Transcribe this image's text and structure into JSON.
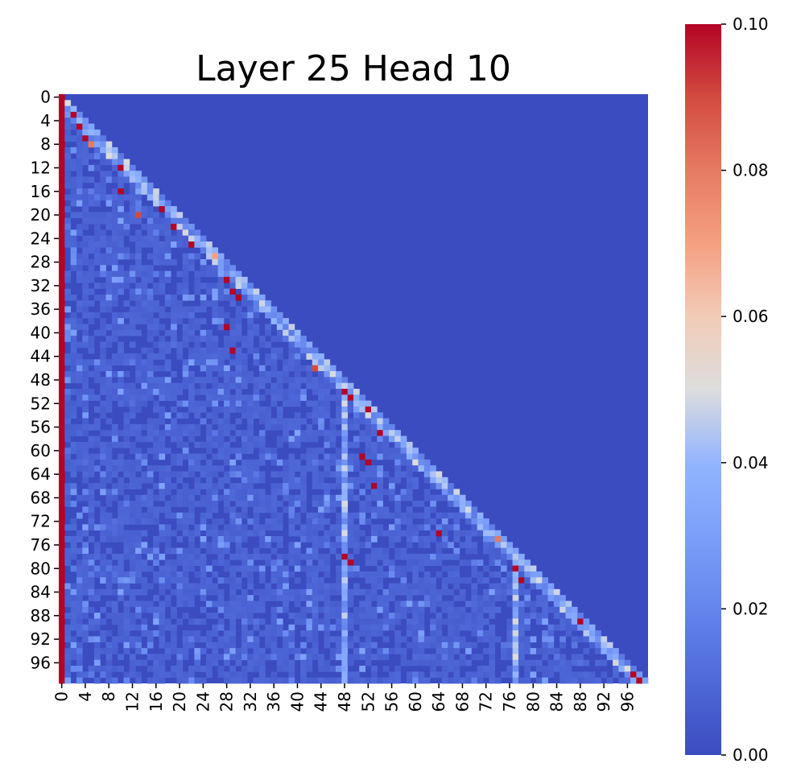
{
  "chart_data": {
    "type": "heatmap",
    "title": "Layer 25 Head 10",
    "xlabel": "",
    "ylabel": "",
    "n": 100,
    "x_tick_labels": [
      "0",
      "4",
      "8",
      "12",
      "16",
      "20",
      "24",
      "28",
      "32",
      "36",
      "40",
      "44",
      "48",
      "52",
      "56",
      "60",
      "64",
      "68",
      "72",
      "76",
      "80",
      "84",
      "88",
      "92",
      "96"
    ],
    "y_tick_labels": [
      "0",
      "4",
      "8",
      "12",
      "16",
      "20",
      "24",
      "28",
      "32",
      "36",
      "40",
      "44",
      "48",
      "52",
      "56",
      "60",
      "64",
      "68",
      "72",
      "76",
      "80",
      "84",
      "88",
      "92",
      "96"
    ],
    "mask": "upper triangle (j > i) is ~0",
    "colormap": "coolwarm",
    "vmin": 0.0,
    "vmax": 0.1,
    "colorbar_ticks": [
      "0.00",
      "0.02",
      "0.04",
      "0.06",
      "0.08",
      "0.10"
    ],
    "high_attention_columns": [
      0,
      48,
      77
    ],
    "column_0_value": 0.1,
    "hotspots": [
      {
        "row": 3,
        "col": 2,
        "value": 0.1
      },
      {
        "row": 5,
        "col": 3,
        "value": 0.1
      },
      {
        "row": 7,
        "col": 4,
        "value": 0.1
      },
      {
        "row": 8,
        "col": 5,
        "value": 0.08
      },
      {
        "row": 12,
        "col": 10,
        "value": 0.1
      },
      {
        "row": 16,
        "col": 10,
        "value": 0.1
      },
      {
        "row": 19,
        "col": 17,
        "value": 0.1
      },
      {
        "row": 20,
        "col": 13,
        "value": 0.09
      },
      {
        "row": 22,
        "col": 19,
        "value": 0.1
      },
      {
        "row": 25,
        "col": 22,
        "value": 0.1
      },
      {
        "row": 27,
        "col": 26,
        "value": 0.07
      },
      {
        "row": 31,
        "col": 28,
        "value": 0.1
      },
      {
        "row": 33,
        "col": 29,
        "value": 0.1
      },
      {
        "row": 34,
        "col": 30,
        "value": 0.1
      },
      {
        "row": 39,
        "col": 28,
        "value": 0.1
      },
      {
        "row": 43,
        "col": 29,
        "value": 0.1
      },
      {
        "row": 46,
        "col": 43,
        "value": 0.09
      },
      {
        "row": 50,
        "col": 48,
        "value": 0.1
      },
      {
        "row": 51,
        "col": 49,
        "value": 0.1
      },
      {
        "row": 53,
        "col": 52,
        "value": 0.1
      },
      {
        "row": 57,
        "col": 54,
        "value": 0.1
      },
      {
        "row": 61,
        "col": 51,
        "value": 0.1
      },
      {
        "row": 62,
        "col": 52,
        "value": 0.1
      },
      {
        "row": 66,
        "col": 53,
        "value": 0.1
      },
      {
        "row": 74,
        "col": 64,
        "value": 0.1
      },
      {
        "row": 75,
        "col": 74,
        "value": 0.08
      },
      {
        "row": 78,
        "col": 48,
        "value": 0.1
      },
      {
        "row": 79,
        "col": 49,
        "value": 0.1
      },
      {
        "row": 80,
        "col": 77,
        "value": 0.1
      },
      {
        "row": 82,
        "col": 78,
        "value": 0.1
      },
      {
        "row": 89,
        "col": 88,
        "value": 0.1
      },
      {
        "row": 98,
        "col": 97,
        "value": 0.1
      },
      {
        "row": 99,
        "col": 98,
        "value": 0.1
      }
    ]
  }
}
